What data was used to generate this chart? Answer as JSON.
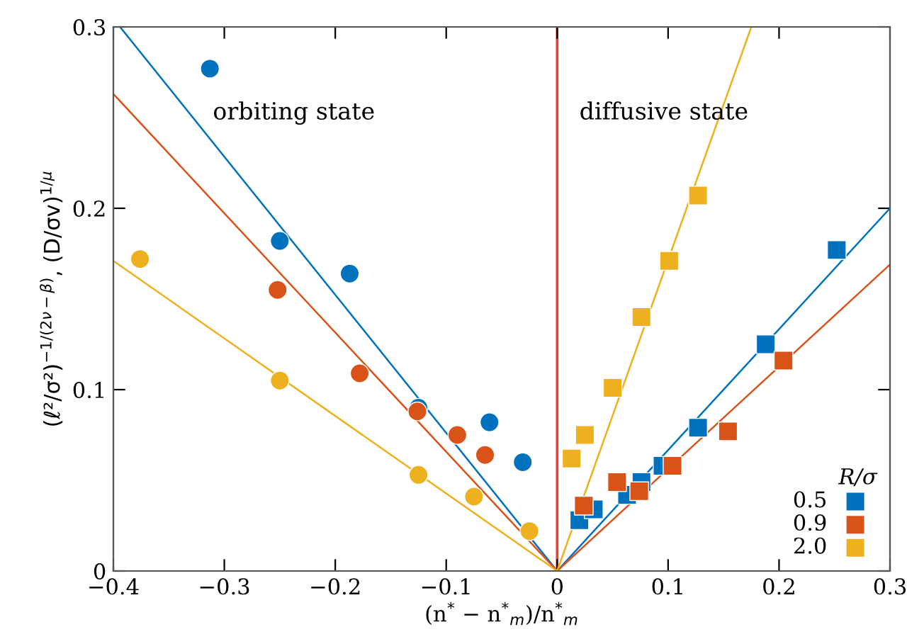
{
  "chart_data": {
    "type": "scatter",
    "xlabel": "(n$^{*}$ − n$^{*}$$_{m}$)/n$^{*}$$_{m}$",
    "ylabel": "(ℓ²/σ²)$^{−1/(2ν−β)}$, (D/σv)$^{1/μ}$",
    "xlim": [
      -0.4,
      0.3
    ],
    "ylim": [
      0,
      0.3
    ],
    "xticks": [
      {
        "value": -0.4,
        "label": "−0.4"
      },
      {
        "value": -0.3,
        "label": "−0.3"
      },
      {
        "value": -0.2,
        "label": "−0.2"
      },
      {
        "value": -0.1,
        "label": "−0.1"
      },
      0,
      0.1,
      0.2,
      0.3
    ],
    "yticks": [
      0,
      0.1,
      0.2,
      0.3
    ],
    "grid": false,
    "legend": "bottom right",
    "legend_title": "R/σ",
    "annotations": [
      "orbiting state",
      "diffusive state"
    ],
    "ref_lines": [
      {
        "axis": "x",
        "value": 0,
        "color": "#e8413a",
        "line_style": "solid"
      }
    ],
    "series": [
      {
        "type": "line",
        "color": "#0072bd",
        "marker": "none",
        "x": [
          -0.394,
          0,
          0.3
        ],
        "values": [
          0.3,
          0,
          0.2
        ]
      },
      {
        "type": "line",
        "color": "#d95319",
        "marker": "none",
        "x": [
          -0.4,
          0,
          0.3
        ],
        "values": [
          0.263,
          0,
          0.169
        ]
      },
      {
        "type": "line",
        "color": "#edb120",
        "marker": "none",
        "x": [
          -0.4,
          0,
          0.175
        ],
        "values": [
          0.171,
          0,
          0.3
        ]
      },
      {
        "color": "#0072bd",
        "marker": "circle",
        "x": [
          -0.313,
          -0.25,
          -0.187,
          -0.125,
          -0.061,
          -0.031
        ],
        "values": [
          0.277,
          0.182,
          0.164,
          0.09,
          0.082,
          0.06
        ]
      },
      {
        "color": "#d95319",
        "marker": "circle",
        "x": [
          -0.252,
          -0.178,
          -0.126,
          -0.09,
          -0.065
        ],
        "values": [
          0.155,
          0.109,
          0.088,
          0.075,
          0.064
        ]
      },
      {
        "color": "#edb120",
        "marker": "circle",
        "x": [
          -0.376,
          -0.25,
          -0.125,
          -0.075,
          -0.025
        ],
        "values": [
          0.172,
          0.105,
          0.053,
          0.041,
          0.022
        ]
      },
      {
        "name": "0.5",
        "color": "#0072bd",
        "marker": "square",
        "x": [
          0.02,
          0.033,
          0.063,
          0.076,
          0.095,
          0.127,
          0.188,
          0.252
        ],
        "values": [
          0.028,
          0.034,
          0.042,
          0.049,
          0.058,
          0.079,
          0.125,
          0.177
        ]
      },
      {
        "name": "0.9",
        "color": "#d95319",
        "marker": "square",
        "x": [
          0.024,
          0.054,
          0.074,
          0.104,
          0.154,
          0.204
        ],
        "values": [
          0.036,
          0.049,
          0.044,
          0.058,
          0.077,
          0.116
        ]
      },
      {
        "name": "2.0",
        "color": "#edb120",
        "marker": "square",
        "x": [
          0.013,
          0.025,
          0.05,
          0.076,
          0.101,
          0.127
        ],
        "values": [
          0.062,
          0.075,
          0.101,
          0.14,
          0.171,
          0.207
        ]
      }
    ]
  }
}
